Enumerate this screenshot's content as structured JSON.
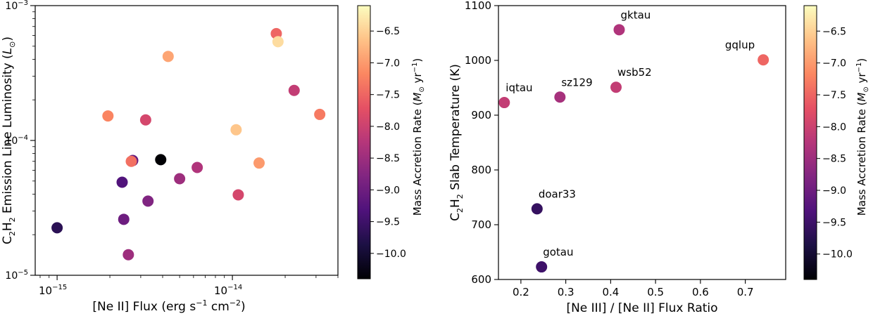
{
  "chart_data": [
    {
      "type": "scatter",
      "xscale": "log",
      "yscale": "log",
      "xlim": [
        7.5e-16,
        4e-14
      ],
      "ylim": [
        1e-05,
        0.001
      ],
      "xlabel_main": "[Ne II] Flux (erg s",
      "xlabel_sup1": "−1",
      "xlabel_mid": " cm",
      "xlabel_sup2": "−2",
      "xlabel_end": ")",
      "ylabel_c": "C",
      "ylabel_sub1": "2",
      "ylabel_h": "H",
      "ylabel_sub2": "2",
      "ylabel_rest": " Emission Line Luminosity (",
      "ylabel_l": "L",
      "ylabel_sun": "⊙",
      "ylabel_end": ")",
      "xticks": [
        {
          "value": 1e-15,
          "base": "10",
          "exp": "−15"
        },
        {
          "value": 1e-14,
          "base": "10",
          "exp": "−14"
        }
      ],
      "yticks": [
        {
          "value": 1e-05,
          "base": "10",
          "exp": "−5"
        },
        {
          "value": 0.0001,
          "base": "10",
          "exp": "−4"
        },
        {
          "value": 0.001,
          "base": "10",
          "exp": "−3"
        }
      ],
      "points": [
        {
          "x": 1e-15,
          "y": 2.25e-05,
          "c": -9.7
        },
        {
          "x": 1.95e-15,
          "y": 0.000152,
          "c": -7.2
        },
        {
          "x": 2.35e-15,
          "y": 4.9e-05,
          "c": -9.3
        },
        {
          "x": 2.4e-15,
          "y": 2.6e-05,
          "c": -9.0
        },
        {
          "x": 2.55e-15,
          "y": 1.42e-05,
          "c": -8.5
        },
        {
          "x": 2.7e-15,
          "y": 7.1e-05,
          "c": -9.1
        },
        {
          "x": 2.65e-15,
          "y": 7e-05,
          "c": -7.4
        },
        {
          "x": 3.2e-15,
          "y": 0.000142,
          "c": -7.9
        },
        {
          "x": 3.3e-15,
          "y": 3.55e-05,
          "c": -8.8
        },
        {
          "x": 3.9e-15,
          "y": 7.2e-05,
          "c": -10.4
        },
        {
          "x": 4.3e-15,
          "y": 0.00042,
          "c": -6.9
        },
        {
          "x": 5e-15,
          "y": 5.2e-05,
          "c": -8.5
        },
        {
          "x": 6.3e-15,
          "y": 6.3e-05,
          "c": -8.3
        },
        {
          "x": 1.05e-14,
          "y": 0.00012,
          "c": -6.6
        },
        {
          "x": 1.08e-14,
          "y": 3.95e-05,
          "c": -7.9
        },
        {
          "x": 1.42e-14,
          "y": 6.8e-05,
          "c": -7.0
        },
        {
          "x": 1.78e-14,
          "y": 0.00062,
          "c": -7.5
        },
        {
          "x": 1.82e-14,
          "y": 0.00054,
          "c": -6.4
        },
        {
          "x": 2.25e-14,
          "y": 0.000235,
          "c": -8.1
        },
        {
          "x": 3.15e-14,
          "y": 0.000156,
          "c": -7.3
        }
      ],
      "colorbar": {
        "label_main": "Mass Accretion Rate (",
        "label_m": "M",
        "label_sun": "⊙",
        "label_yr": " yr",
        "label_sup": "−1",
        "label_end": ")",
        "range": [
          -10.4,
          -6.1
        ],
        "ticks": [
          {
            "value": -6.5,
            "label": "−6.5"
          },
          {
            "value": -7.0,
            "label": "−7.0"
          },
          {
            "value": -7.5,
            "label": "−7.5"
          },
          {
            "value": -8.0,
            "label": "−8.0"
          },
          {
            "value": -8.5,
            "label": "−8.5"
          },
          {
            "value": -9.0,
            "label": "−9.0"
          },
          {
            "value": -9.5,
            "label": "−9.5"
          },
          {
            "value": -10.0,
            "label": "−10.0"
          }
        ]
      }
    },
    {
      "type": "scatter",
      "xscale": "linear",
      "yscale": "linear",
      "xlim": [
        0.15,
        0.79
      ],
      "ylim": [
        600,
        1100
      ],
      "xlabel": "[Ne III] / [Ne II] Flux Ratio",
      "ylabel_c": "C",
      "ylabel_sub1": "2",
      "ylabel_h": "H",
      "ylabel_sub2": "2",
      "ylabel_rest": " Slab Temperature (K)",
      "xticks": [
        {
          "value": 0.2,
          "label": "0.2"
        },
        {
          "value": 0.3,
          "label": "0.3"
        },
        {
          "value": 0.4,
          "label": "0.4"
        },
        {
          "value": 0.5,
          "label": "0.5"
        },
        {
          "value": 0.6,
          "label": "0.6"
        },
        {
          "value": 0.7,
          "label": "0.7"
        }
      ],
      "yticks": [
        {
          "value": 600,
          "label": "600"
        },
        {
          "value": 700,
          "label": "700"
        },
        {
          "value": 800,
          "label": "800"
        },
        {
          "value": 900,
          "label": "900"
        },
        {
          "value": 1000,
          "label": "1000"
        },
        {
          "value": 1100,
          "label": "1100"
        }
      ],
      "points": [
        {
          "label": "iqtau",
          "x": 0.163,
          "y": 923,
          "c": -8.1
        },
        {
          "label": "sz129",
          "x": 0.287,
          "y": 933,
          "c": -8.4
        },
        {
          "label": "wsb52",
          "x": 0.412,
          "y": 951,
          "c": -8.1
        },
        {
          "label": "gktau",
          "x": 0.419,
          "y": 1056,
          "c": -8.3
        },
        {
          "label": "gqlup",
          "x": 0.74,
          "y": 1001,
          "c": -7.5
        },
        {
          "label": "doar33",
          "x": 0.236,
          "y": 729,
          "c": -9.6
        },
        {
          "label": "gotau",
          "x": 0.246,
          "y": 623,
          "c": -9.5
        }
      ],
      "colorbar": {
        "label_main": "Mass Accretion Rate (",
        "label_m": "M",
        "label_sun": "⊙",
        "label_yr": " yr",
        "label_sup": "−1",
        "label_end": ")",
        "range": [
          -10.4,
          -6.1
        ],
        "ticks": [
          {
            "value": -6.5,
            "label": "−6.5"
          },
          {
            "value": -7.0,
            "label": "−7.0"
          },
          {
            "value": -7.5,
            "label": "−7.5"
          },
          {
            "value": -8.0,
            "label": "−8.0"
          },
          {
            "value": -8.5,
            "label": "−8.5"
          },
          {
            "value": -9.0,
            "label": "−9.0"
          },
          {
            "value": -9.5,
            "label": "−9.5"
          },
          {
            "value": -10.0,
            "label": "−10.0"
          }
        ]
      }
    }
  ]
}
